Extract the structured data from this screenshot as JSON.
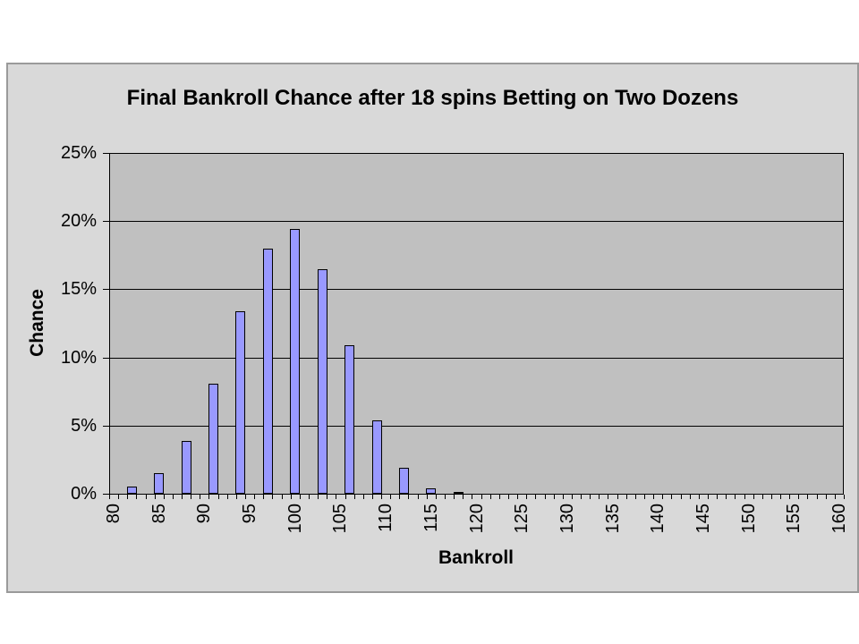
{
  "chart_data": {
    "type": "bar",
    "title": "Final Bankroll Chance after 18 spins Betting on Two Dozens",
    "xlabel": "Bankroll",
    "ylabel": "Chance",
    "x": [
      82,
      85,
      88,
      91,
      94,
      97,
      100,
      103,
      106,
      109,
      112,
      115,
      118
    ],
    "values": [
      0.5,
      1.5,
      3.9,
      8.1,
      13.4,
      18.0,
      19.4,
      16.5,
      10.9,
      5.4,
      1.9,
      0.4,
      0.04
    ],
    "ylim": [
      0,
      25
    ],
    "ytick_step": 5,
    "ytick_labels": [
      "0%",
      "5%",
      "10%",
      "15%",
      "20%",
      "25%"
    ],
    "x_axis_range": [
      80,
      160
    ],
    "xtick_label_step": 5,
    "xtick_labels": [
      "80",
      "85",
      "90",
      "95",
      "100",
      "105",
      "110",
      "115",
      "120",
      "125",
      "130",
      "135",
      "140",
      "145",
      "150",
      "155",
      "160"
    ],
    "grid": "horizontal",
    "legend": "none"
  },
  "colors": {
    "page_bg": "#ffffff",
    "chart_bg": "#d9d9d9",
    "frame_border": "#9a9a9a",
    "plot_bg": "#c0c0c0",
    "gridline": "#000000",
    "bar_fill": "#9999ff",
    "bar_border": "#000000",
    "text": "#000000"
  }
}
